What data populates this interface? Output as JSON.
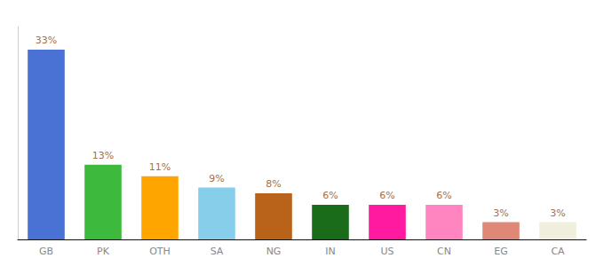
{
  "chart_data": {
    "type": "bar",
    "categories": [
      "GB",
      "PK",
      "OTH",
      "SA",
      "NG",
      "IN",
      "US",
      "CN",
      "EG",
      "CA"
    ],
    "values": [
      33,
      13,
      11,
      9,
      8,
      6,
      6,
      6,
      3,
      3
    ],
    "value_labels": [
      "33%",
      "13%",
      "11%",
      "9%",
      "8%",
      "6%",
      "6%",
      "6%",
      "3%",
      "3%"
    ],
    "colors": [
      "#4a72d4",
      "#3dba3d",
      "#ffa500",
      "#87ceeb",
      "#b8621a",
      "#1a6b1a",
      "#ff1aa0",
      "#ff85c0",
      "#e08878",
      "#f0eedd"
    ],
    "ylim": [
      0,
      37
    ],
    "data_labels": true,
    "tick_labels": "x",
    "grid": false
  }
}
